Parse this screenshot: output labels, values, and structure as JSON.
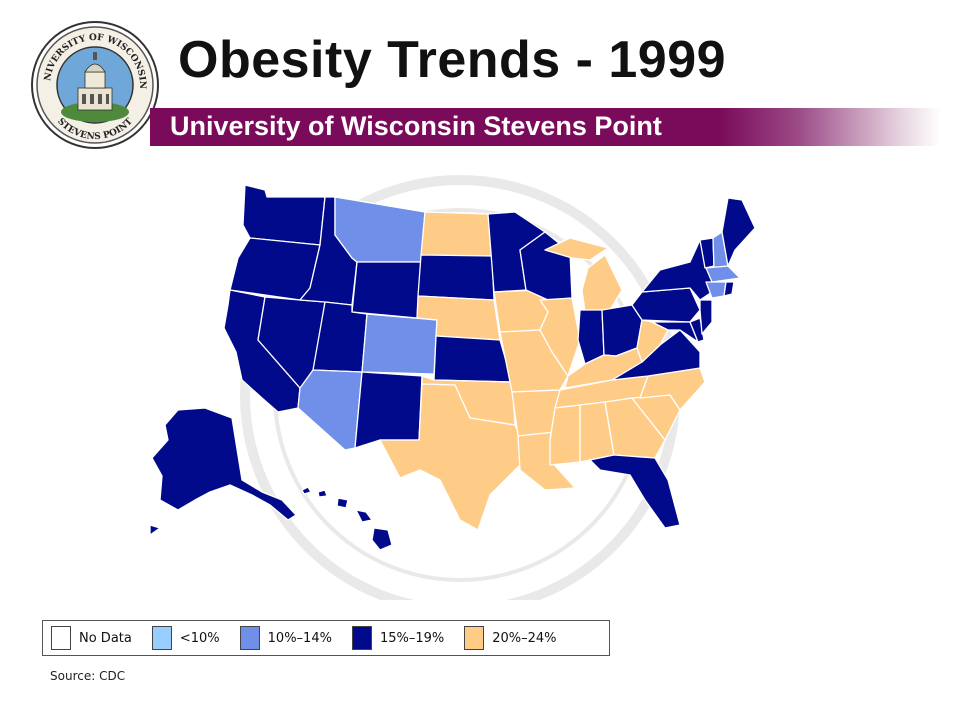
{
  "slide": {
    "title": "Obesity Trends - 1999",
    "subtitle": "University of Wisconsin Stevens Point",
    "source": "Source: CDC"
  },
  "seal": {
    "top_text": "UNIVERSITY OF WISCONSIN",
    "bottom_text": "STEVENS POINT"
  },
  "colors": {
    "no_data": "#ffffff",
    "lt10": "#99ccff",
    "b10_14": "#6f8fe8",
    "b15_19": "#000a8b",
    "b20_24": "#ffcc88",
    "banner": "#7a0a5a"
  },
  "legend": [
    {
      "label": "No Data",
      "color": "#ffffff"
    },
    {
      "label": "<10%",
      "color": "#99ccff"
    },
    {
      "label": "10%–14%",
      "color": "#6f8fe8"
    },
    {
      "label": "15%–19%",
      "color": "#000a8b"
    },
    {
      "label": "20%–24%",
      "color": "#ffcc88"
    }
  ],
  "map_data": {
    "year": 1999,
    "states": [
      {
        "name": "WA",
        "category": "15%–19%"
      },
      {
        "name": "OR",
        "category": "15%–19%"
      },
      {
        "name": "CA",
        "category": "15%–19%"
      },
      {
        "name": "NV",
        "category": "15%–19%"
      },
      {
        "name": "ID",
        "category": "15%–19%"
      },
      {
        "name": "MT",
        "category": "10%–14%"
      },
      {
        "name": "WY",
        "category": "15%–19%"
      },
      {
        "name": "UT",
        "category": "15%–19%"
      },
      {
        "name": "AZ",
        "category": "10%–14%"
      },
      {
        "name": "CO",
        "category": "10%–14%"
      },
      {
        "name": "NM",
        "category": "15%–19%"
      },
      {
        "name": "ND",
        "category": "20%–24%"
      },
      {
        "name": "SD",
        "category": "15%–19%"
      },
      {
        "name": "NE",
        "category": "20%–24%"
      },
      {
        "name": "KS",
        "category": "15%–19%"
      },
      {
        "name": "OK",
        "category": "20%–24%"
      },
      {
        "name": "TX",
        "category": "20%–24%"
      },
      {
        "name": "MN",
        "category": "15%–19%"
      },
      {
        "name": "IA",
        "category": "20%–24%"
      },
      {
        "name": "MO",
        "category": "20%–24%"
      },
      {
        "name": "AR",
        "category": "20%–24%"
      },
      {
        "name": "LA",
        "category": "20%–24%"
      },
      {
        "name": "WI",
        "category": "15%–19%"
      },
      {
        "name": "IL",
        "category": "20%–24%"
      },
      {
        "name": "MI",
        "category": "20%–24%"
      },
      {
        "name": "IN",
        "category": "15%–19%"
      },
      {
        "name": "OH",
        "category": "15%–19%"
      },
      {
        "name": "KY",
        "category": "20%–24%"
      },
      {
        "name": "TN",
        "category": "20%–24%"
      },
      {
        "name": "MS",
        "category": "20%–24%"
      },
      {
        "name": "AL",
        "category": "20%–24%"
      },
      {
        "name": "GA",
        "category": "20%–24%"
      },
      {
        "name": "FL",
        "category": "15%–19%"
      },
      {
        "name": "SC",
        "category": "20%–24%"
      },
      {
        "name": "NC",
        "category": "20%–24%"
      },
      {
        "name": "VA",
        "category": "15%–19%"
      },
      {
        "name": "WV",
        "category": "20%–24%"
      },
      {
        "name": "PA",
        "category": "15%–19%"
      },
      {
        "name": "NY",
        "category": "15%–19%"
      },
      {
        "name": "NJ",
        "category": "15%–19%"
      },
      {
        "name": "DE",
        "category": "15%–19%"
      },
      {
        "name": "MD",
        "category": "15%–19%"
      },
      {
        "name": "VT",
        "category": "15%–19%"
      },
      {
        "name": "NH",
        "category": "10%–14%"
      },
      {
        "name": "ME",
        "category": "15%–19%"
      },
      {
        "name": "MA",
        "category": "10%–14%"
      },
      {
        "name": "CT",
        "category": "10%–14%"
      },
      {
        "name": "RI",
        "category": "15%–19%"
      },
      {
        "name": "AK",
        "category": "15%–19%"
      },
      {
        "name": "HI",
        "category": "15%–19%"
      }
    ]
  }
}
